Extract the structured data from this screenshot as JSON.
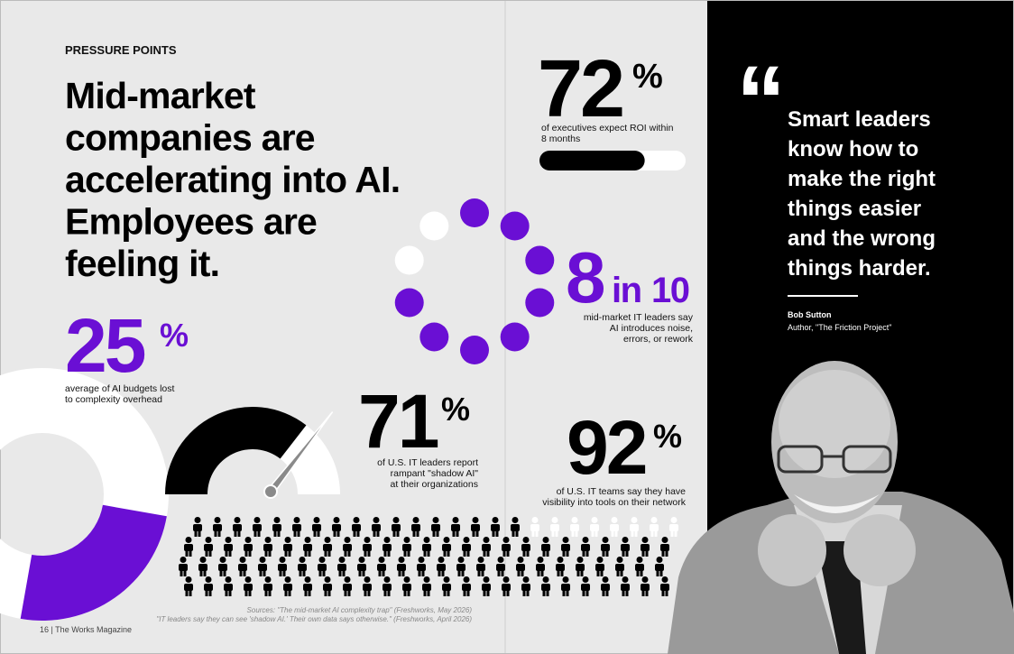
{
  "left_page": {
    "kicker": "PRESSURE POINTS",
    "headline": [
      "Mid-market",
      "companies are",
      "accelerating into AI.",
      "Employees are",
      "feeling it."
    ],
    "sources": [
      "Sources: \"The mid-market AI complexity trap\" (Freshworks, May 2026)",
      "\"IT leaders say they can see 'shadow AI.' Their own data says otherwise.\" (Freshworks, April 2026)"
    ],
    "page_footer": "16 | The Works Magazine"
  },
  "stats": [
    {
      "value": 25,
      "unit": "%",
      "caption": [
        "average of AI budgets lost",
        "to complexity overhead"
      ]
    },
    {
      "value": 71,
      "unit": "%",
      "caption": [
        "of U.S. IT leaders report",
        "rampant \"shadow AI\"",
        "at their organizations"
      ]
    },
    {
      "value": 72,
      "unit": "%",
      "caption": [
        "of executives expect ROI within",
        "8 months"
      ]
    },
    {
      "value": 8,
      "connector": "in",
      "total": 10,
      "caption": [
        "mid-market IT leaders say",
        "AI introduces noise,",
        "errors, or rework"
      ]
    },
    {
      "value": 92,
      "unit": "%",
      "caption": [
        "of U.S. IT teams say they have",
        "visibility into tools on their network"
      ]
    }
  ],
  "quote": {
    "text": [
      "Smart leaders",
      "know how to",
      "make the right",
      "things easier",
      "and the wrong",
      "things harder."
    ],
    "author": "Bob Sutton",
    "role": "Author, \"The Friction Project\""
  }
}
